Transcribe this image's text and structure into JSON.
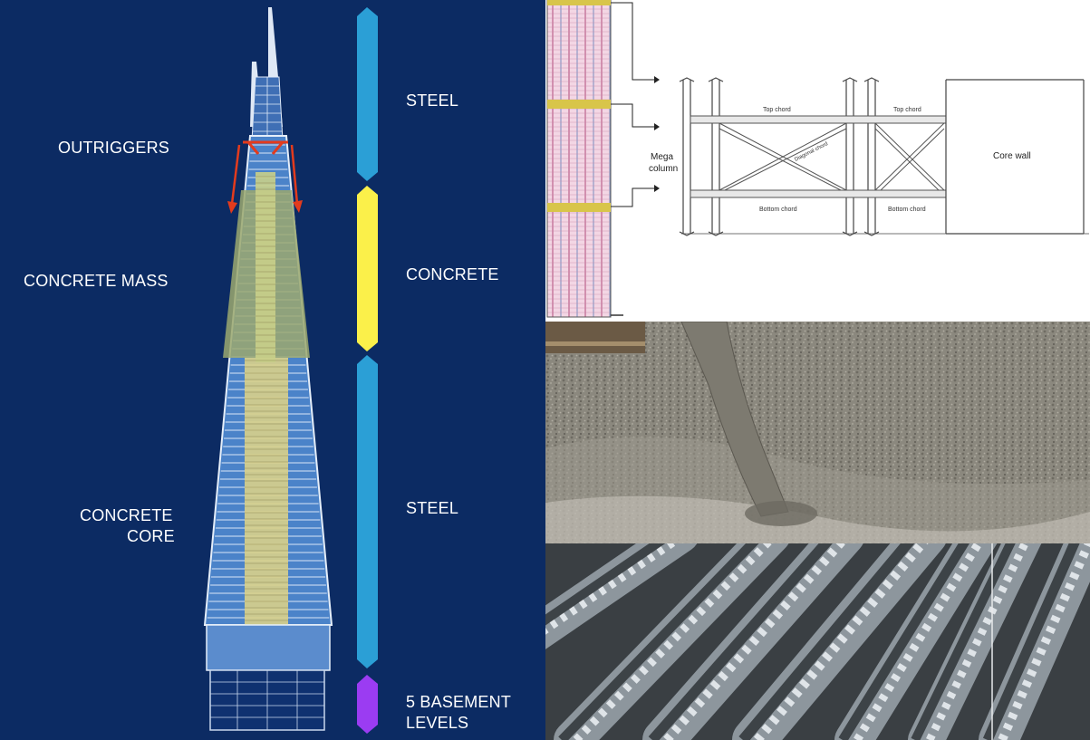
{
  "left": {
    "tower_labels": {
      "outriggers": "OUTRIGGERS",
      "concrete_mass": "CONCRETE MASS",
      "concrete_core_line1": "CONCRETE",
      "concrete_core_line2": "CORE"
    },
    "material_bar": [
      {
        "label": "STEEL",
        "color": "#2b9fd6"
      },
      {
        "label": "CONCRETE",
        "color": "#fbf04a"
      },
      {
        "label": "STEEL",
        "color": "#2b9fd6"
      },
      {
        "label_line1": "5 BASEMENT",
        "label_line2": "LEVELS",
        "color": "#9b3cf2"
      }
    ],
    "colors": {
      "background": "#0c2b63",
      "arrow": "#e33b1d"
    }
  },
  "outrigger_diagram": {
    "mega_column_line1": "Mega",
    "mega_column_line2": "column",
    "top_chord": "Top chord",
    "top_chord_2": "Top chord",
    "diagonal_chord": "Diagonal chord",
    "bottom_chord": "Bottom chord",
    "bottom_chord_2": "Bottom chord",
    "core_wall": "Core wall"
  },
  "photos": {
    "middle": "concrete-pour-photo",
    "bottom": "rebar-photo"
  }
}
